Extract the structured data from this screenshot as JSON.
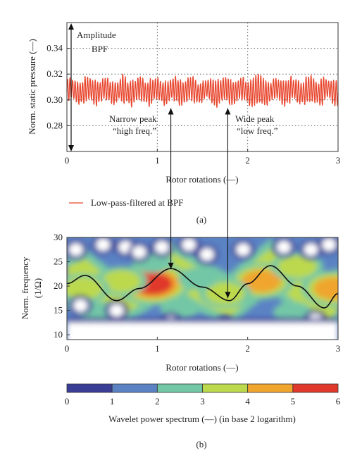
{
  "chart_data": [
    {
      "id": "a",
      "type": "line",
      "panel_label": "(a)",
      "xlabel": "Rotor rotations (—)",
      "ylabel": "Norm. static pressure (—)",
      "xlim": [
        0,
        3
      ],
      "ylim": [
        0.26,
        0.36
      ],
      "x_ticks": [
        0,
        1,
        2,
        3
      ],
      "y_ticks": [
        0.28,
        0.3,
        0.32,
        0.34
      ],
      "grid": "dotted",
      "legend": {
        "placement": "below",
        "label": "Low-pass-filtered at BPF",
        "color": "#e8472f"
      },
      "series": [
        {
          "name": "Low-pass-filtered at BPF",
          "color": "#e8472f",
          "signal": {
            "mean": 0.307,
            "oscillations_per_rotation": 36,
            "amplitude_range": [
              0.006,
              0.012
            ],
            "min": 0.291,
            "max": 0.322
          }
        }
      ],
      "annotations": [
        {
          "text": "Amplitude",
          "x": 0.03,
          "y": 0.345
        },
        {
          "text": "BPF",
          "x": 0.28,
          "y": 0.336
        },
        {
          "text": "Narrow peak",
          "x": 0.48,
          "y": 0.286
        },
        {
          "text": "“high freq.”",
          "x": 0.48,
          "y": 0.277
        },
        {
          "text": "Wide peak",
          "x": 1.95,
          "y": 0.286
        },
        {
          "text": "“low freq.”",
          "x": 1.95,
          "y": 0.277
        }
      ],
      "amplitude_arrow": {
        "x": 0.05,
        "y_from": 0.358,
        "y_to": 0.261
      }
    },
    {
      "id": "b",
      "type": "heatmap",
      "panel_label": "(b)",
      "xlabel": "Rotor rotations (—)",
      "ylabel": "Norm. frequency",
      "ylabel_unit": "(1/Ω)",
      "xlim": [
        0,
        3
      ],
      "ylim": [
        9,
        30
      ],
      "x_ticks": [
        0,
        1,
        2,
        3
      ],
      "y_ticks": [
        10,
        15,
        20,
        25,
        30
      ],
      "ridge_line": {
        "color": "#111111",
        "x": [
          0,
          0.2,
          0.55,
          0.8,
          1.15,
          1.5,
          1.8,
          2.0,
          2.25,
          2.55,
          2.85,
          3.0
        ],
        "y": [
          20.5,
          22.2,
          17.0,
          19.5,
          23.6,
          19.8,
          17.0,
          20.5,
          24.2,
          20.0,
          15.5,
          18.5
        ]
      },
      "colorbar": {
        "label": "Wavelet power spectrum (—) (in base 2 logarithm)",
        "ticks": [
          0,
          1,
          2,
          3,
          4,
          5,
          6
        ],
        "colors": [
          "#3a3d96",
          "#5b83c4",
          "#73c7a6",
          "#bcd94e",
          "#f0a52f",
          "#e0392c"
        ]
      },
      "contour_blobs": [
        {
          "x": 0.95,
          "y": 20.5,
          "level": 6
        },
        {
          "x": 0.6,
          "y": 21.0,
          "level": 4
        },
        {
          "x": 0.18,
          "y": 19.5,
          "level": 4
        },
        {
          "x": 2.15,
          "y": 21.0,
          "level": 5
        },
        {
          "x": 1.75,
          "y": 18.5,
          "level": 4
        },
        {
          "x": 2.55,
          "y": 24.0,
          "level": 4
        },
        {
          "x": 2.95,
          "y": 19.5,
          "level": 5
        },
        {
          "x": 1.45,
          "y": 21.5,
          "level": 3
        },
        {
          "x": 0.95,
          "y": 25.0,
          "level": 3
        },
        {
          "x": 0.35,
          "y": 14.5,
          "level": 3
        },
        {
          "x": 1.25,
          "y": 15.5,
          "level": 3
        },
        {
          "x": 2.5,
          "y": 14.5,
          "level": 3
        }
      ],
      "white_gaps": [
        {
          "x": 0.1,
          "y": 27.5
        },
        {
          "x": 0.4,
          "y": 28.5
        },
        {
          "x": 0.65,
          "y": 28.0
        },
        {
          "x": 0.8,
          "y": 27.0
        },
        {
          "x": 1.05,
          "y": 28.0
        },
        {
          "x": 1.35,
          "y": 28.5
        },
        {
          "x": 1.55,
          "y": 26.5
        },
        {
          "x": 1.95,
          "y": 27.5
        },
        {
          "x": 2.4,
          "y": 28.0
        },
        {
          "x": 2.7,
          "y": 27.5
        },
        {
          "x": 2.9,
          "y": 28.5
        },
        {
          "x": 0.15,
          "y": 16.0
        },
        {
          "x": 0.55,
          "y": 15.0
        },
        {
          "x": 1.15,
          "y": 12.5
        },
        {
          "x": 1.75,
          "y": 12.0
        },
        {
          "x": 2.05,
          "y": 11.0
        },
        {
          "x": 2.45,
          "y": 11.0
        },
        {
          "x": 2.75,
          "y": 13.0
        }
      ],
      "white_floor": {
        "x_from": 0.0,
        "x_to": 3.0,
        "y_from": 9,
        "y_to": 12.5
      }
    }
  ],
  "figure": {
    "annotation_arrows": [
      {
        "from": {
          "panel": "b",
          "x": 1.15,
          "y": 23.5
        },
        "to": {
          "panel": "a",
          "x": 1.15,
          "y": 0.298
        }
      },
      {
        "from": {
          "panel": "b",
          "x": 1.78,
          "y": 17.5
        },
        "to": {
          "panel": "a",
          "x": 1.78,
          "y": 0.298
        }
      }
    ]
  }
}
